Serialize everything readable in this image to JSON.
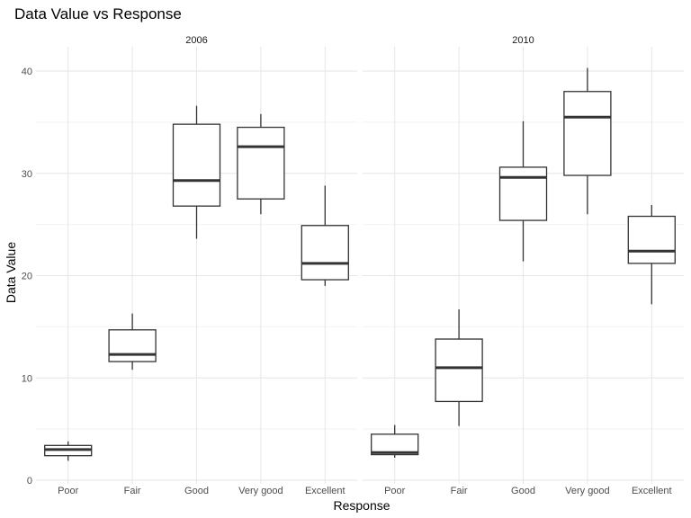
{
  "chart_data": {
    "type": "boxplot",
    "title": "Data Value vs Response",
    "xlabel": "Response",
    "ylabel": "Data Value",
    "ylim": [
      0,
      42
    ],
    "yticks": [
      0,
      10,
      20,
      30,
      40
    ],
    "grid": true,
    "categories": [
      "Poor",
      "Fair",
      "Good",
      "Very good",
      "Excellent"
    ],
    "panels": [
      {
        "label": "2006",
        "boxes": [
          {
            "category": "Poor",
            "min": 1.9,
            "q1": 2.4,
            "median": 3.0,
            "q3": 3.4,
            "max": 3.8
          },
          {
            "category": "Fair",
            "min": 10.8,
            "q1": 11.6,
            "median": 12.3,
            "q3": 14.7,
            "max": 16.3
          },
          {
            "category": "Good",
            "min": 23.6,
            "q1": 26.8,
            "median": 29.3,
            "q3": 34.8,
            "max": 36.6
          },
          {
            "category": "Very good",
            "min": 26.0,
            "q1": 27.5,
            "median": 32.6,
            "q3": 34.5,
            "max": 35.8
          },
          {
            "category": "Excellent",
            "min": 19.0,
            "q1": 19.6,
            "median": 21.2,
            "q3": 24.9,
            "max": 28.8
          }
        ]
      },
      {
        "label": "2010",
        "boxes": [
          {
            "category": "Poor",
            "min": 2.2,
            "q1": 2.5,
            "median": 2.7,
            "q3": 4.5,
            "max": 5.4
          },
          {
            "category": "Fair",
            "min": 5.3,
            "q1": 7.7,
            "median": 11.0,
            "q3": 13.8,
            "max": 16.7
          },
          {
            "category": "Good",
            "min": 21.4,
            "q1": 25.4,
            "median": 29.6,
            "q3": 30.6,
            "max": 35.1
          },
          {
            "category": "Very good",
            "min": 26.0,
            "q1": 29.8,
            "median": 35.5,
            "q3": 38.0,
            "max": 40.3
          },
          {
            "category": "Excellent",
            "min": 17.2,
            "q1": 21.2,
            "median": 22.4,
            "q3": 25.8,
            "max": 26.9
          }
        ]
      }
    ],
    "colors": {
      "grid_major": "#e6e6e6",
      "grid_minor": "#f2f2f2",
      "box_stroke": "#333333",
      "box_fill": "#ffffff",
      "text": "#000000",
      "tick_text": "#4d4d4d"
    }
  }
}
